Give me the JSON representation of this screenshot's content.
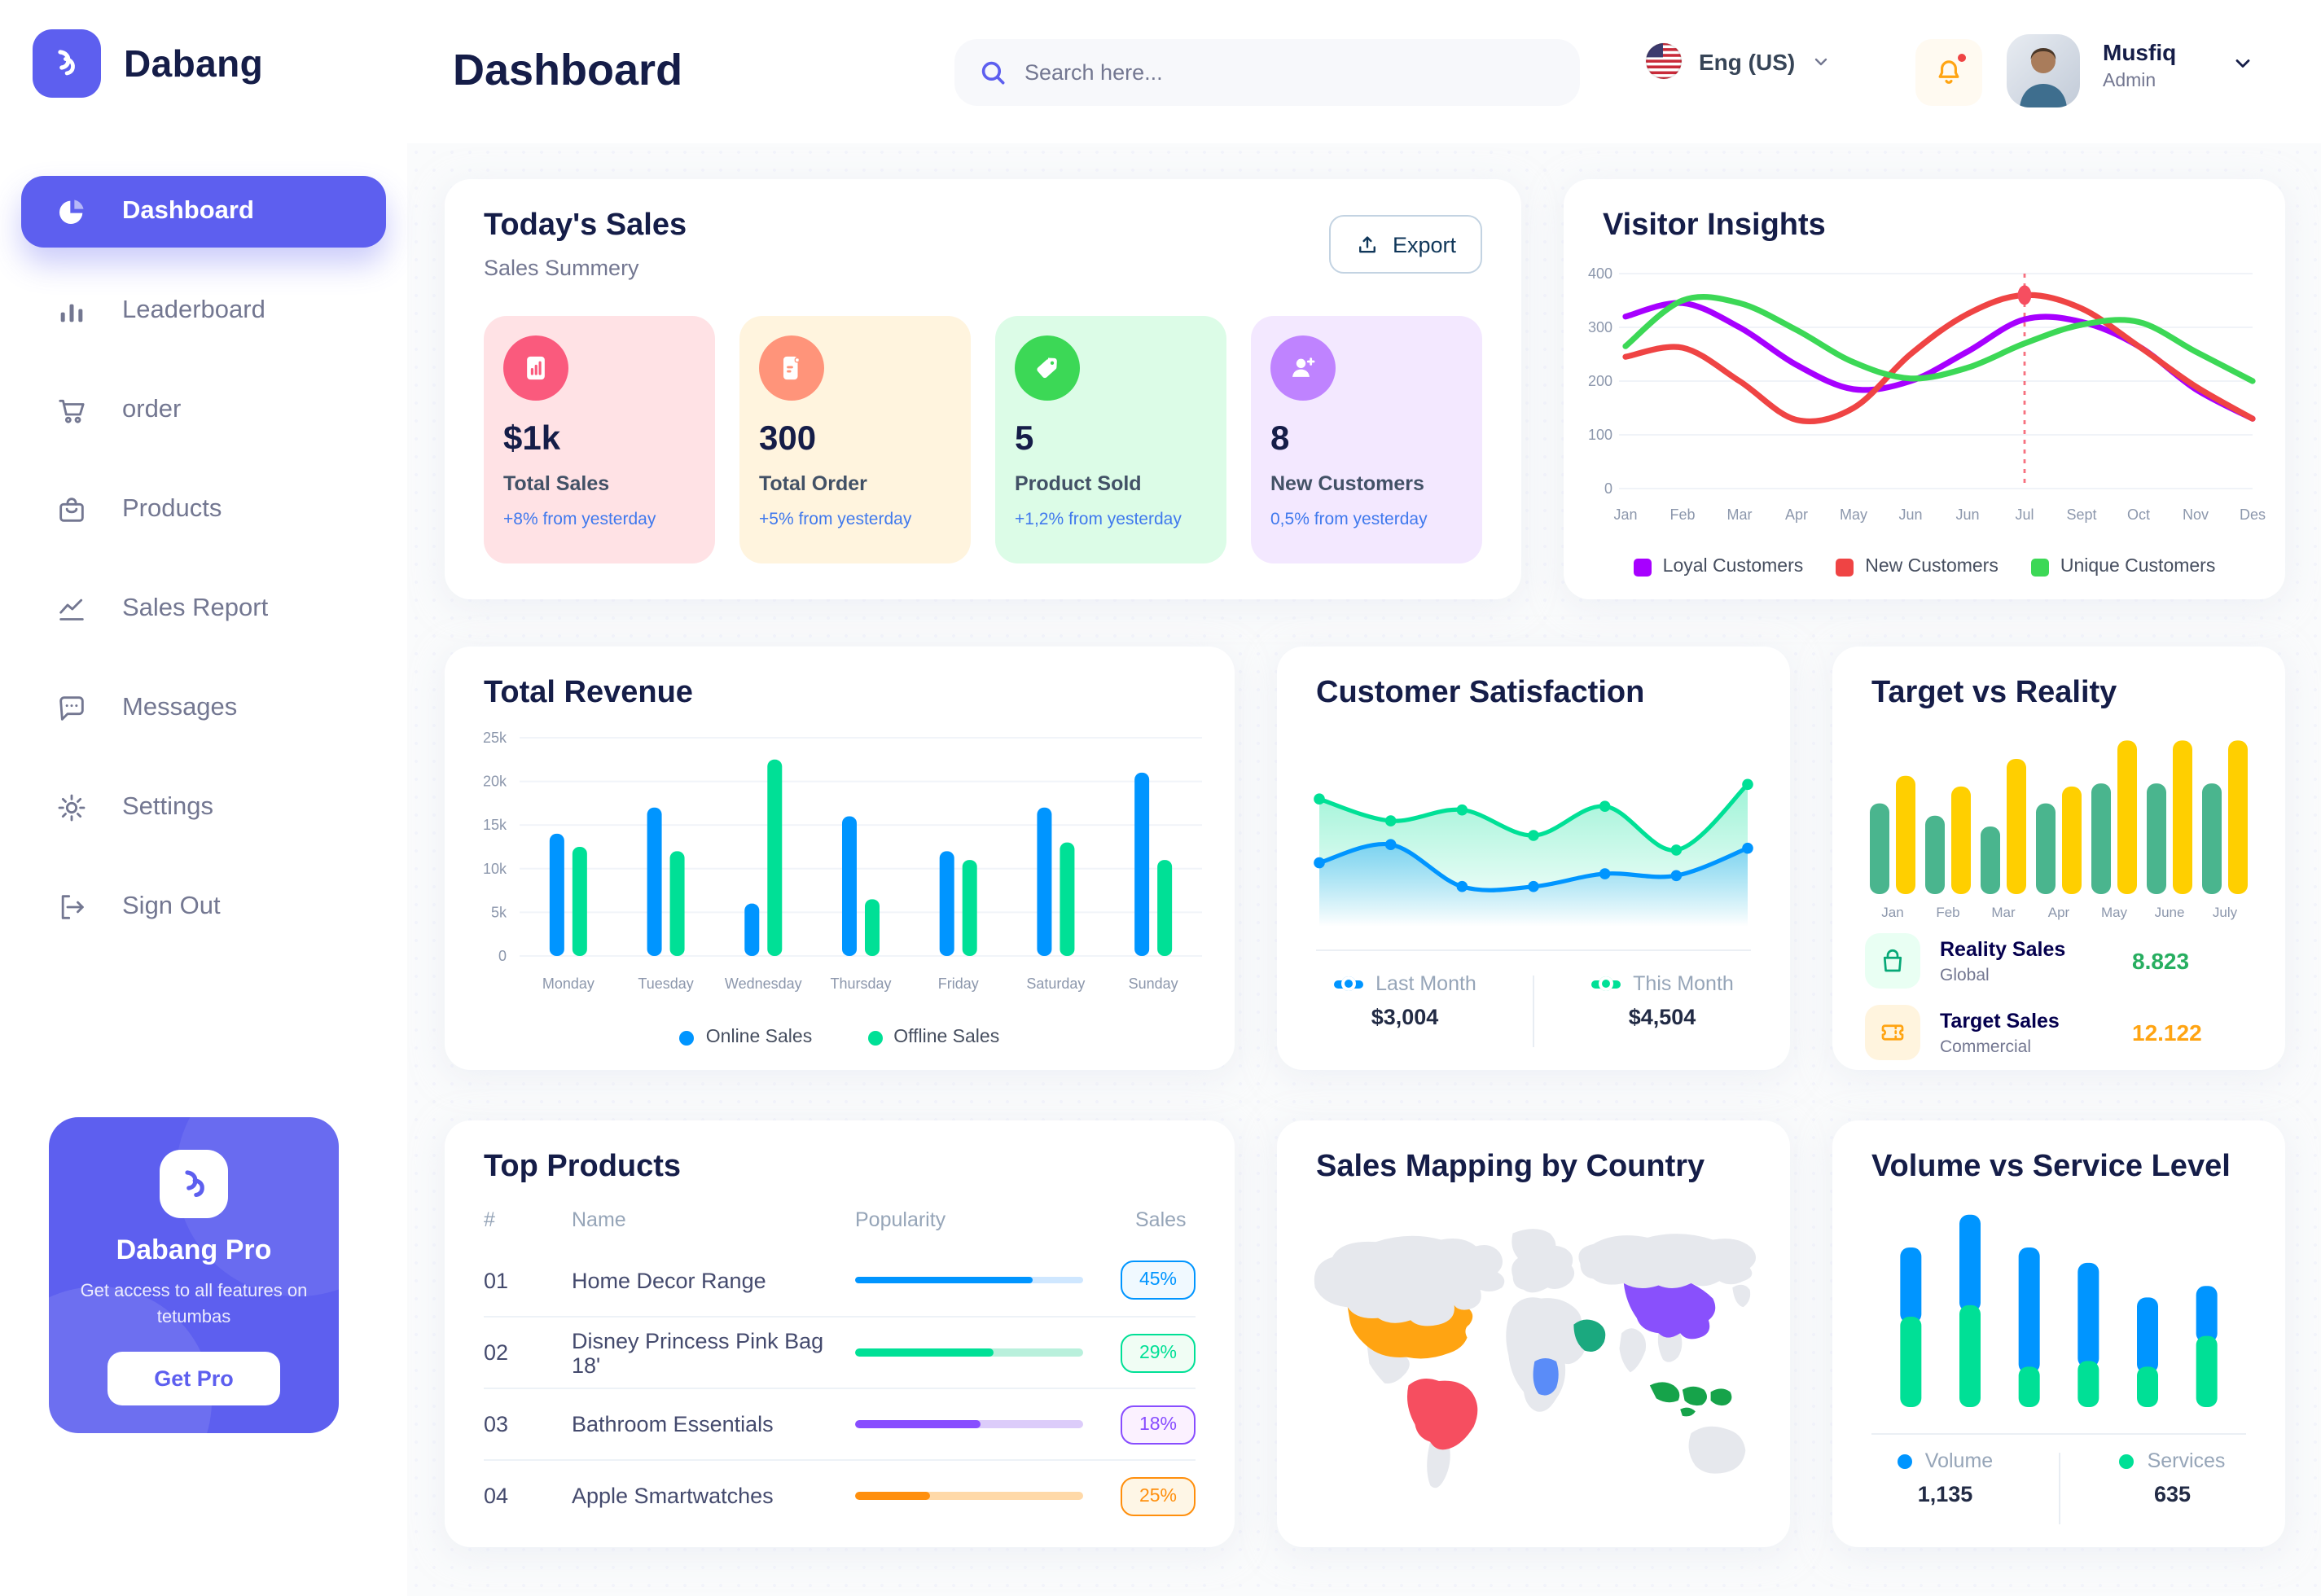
{
  "app": {
    "brand": "Dabang",
    "accent_color": "#5D5FEF"
  },
  "sidebar": {
    "items": [
      {
        "label": "Dashboard",
        "active": true
      },
      {
        "label": "Leaderboard",
        "active": false
      },
      {
        "label": "order",
        "active": false
      },
      {
        "label": "Products",
        "active": false
      },
      {
        "label": "Sales Report",
        "active": false
      },
      {
        "label": "Messages",
        "active": false
      },
      {
        "label": "Settings",
        "active": false
      },
      {
        "label": "Sign Out",
        "active": false
      }
    ],
    "promo": {
      "title": "Dabang Pro",
      "desc": "Get access to all features on tetumbas",
      "cta": "Get Pro"
    }
  },
  "header": {
    "title": "Dashboard",
    "search_placeholder": "Search here...",
    "language": "Eng (US)",
    "user": {
      "name": "Musfiq",
      "role": "Admin"
    }
  },
  "todays_sales": {
    "title": "Today's Sales",
    "subtitle": "Sales Summery",
    "export_label": "Export",
    "cards": [
      {
        "value": "$1k",
        "label": "Total Sales",
        "delta": "+8% from yesterday",
        "bg": "#FFE2E5",
        "icon_bg": "#FA5A7D",
        "icon": "bar-chart"
      },
      {
        "value": "300",
        "label": "Total Order",
        "delta": "+5% from yesterday",
        "bg": "#FFF4DE",
        "icon_bg": "#FF947A",
        "icon": "file-lines"
      },
      {
        "value": "5",
        "label": "Product Sold",
        "delta": "+1,2% from yesterday",
        "bg": "#DCFCE7",
        "icon_bg": "#3CD856",
        "icon": "price-tag"
      },
      {
        "value": "8",
        "label": "New Customers",
        "delta": "0,5% from yesterday",
        "bg": "#F3E8FF",
        "icon_bg": "#BF83FF",
        "icon": "user-plus"
      }
    ]
  },
  "visitor_insights": {
    "title": "Visitor Insights",
    "chart_data": {
      "type": "line",
      "x": [
        "Jan",
        "Feb",
        "Mar",
        "Apr",
        "May",
        "Jun",
        "Jun",
        "Jul",
        "Sept",
        "Oct",
        "Nov",
        "Des"
      ],
      "ylim": [
        0,
        400
      ],
      "yticks": [
        0,
        100,
        200,
        300,
        400
      ],
      "grid": true,
      "legend_position": "bottom",
      "series": [
        {
          "name": "Loyal Customers",
          "color": "#A700FF",
          "values": [
            320,
            345,
            300,
            230,
            185,
            200,
            255,
            315,
            310,
            265,
            185,
            130
          ]
        },
        {
          "name": "New Customers",
          "color": "#EF4444",
          "values": [
            245,
            262,
            200,
            128,
            150,
            250,
            325,
            360,
            335,
            265,
            190,
            130
          ]
        },
        {
          "name": "Unique Customers",
          "color": "#3CD856",
          "values": [
            265,
            350,
            345,
            295,
            235,
            205,
            225,
            270,
            305,
            310,
            255,
            200
          ]
        }
      ],
      "marker": {
        "series_index": 1,
        "index": 7
      },
      "vline_index": 7
    }
  },
  "total_revenue": {
    "title": "Total Revenue",
    "chart_data": {
      "type": "bar",
      "categories": [
        "Monday",
        "Tuesday",
        "Wednesday",
        "Thursday",
        "Friday",
        "Saturday",
        "Sunday"
      ],
      "ylim": [
        0,
        25000
      ],
      "yticks": [
        0,
        5000,
        10000,
        15000,
        20000,
        25000
      ],
      "ytick_labels": [
        "0",
        "5k",
        "10k",
        "15k",
        "20k",
        "25k"
      ],
      "grid": true,
      "legend_position": "bottom",
      "series": [
        {
          "name": "Online Sales",
          "color": "#0095FF",
          "values": [
            14000,
            17000,
            6000,
            16000,
            12000,
            17000,
            21000
          ]
        },
        {
          "name": "Offline Sales",
          "color": "#00E096",
          "values": [
            12500,
            12000,
            22500,
            6500,
            11000,
            13000,
            11000
          ]
        }
      ]
    }
  },
  "customer_satisfaction": {
    "title": "Customer Satisfaction",
    "chart_data": {
      "type": "area",
      "ylim": [
        0,
        100
      ],
      "series": [
        {
          "name": "Last Month",
          "color": "#0095FF",
          "total_label": "$3,004",
          "values": [
            35,
            45,
            22,
            22,
            29,
            28,
            43
          ]
        },
        {
          "name": "This Month",
          "color": "#00E096",
          "total_label": "$4,504",
          "values": [
            70,
            58,
            64,
            50,
            66,
            42,
            78
          ]
        }
      ]
    }
  },
  "target_reality": {
    "title": "Target vs Reality",
    "chart_data": {
      "type": "bar",
      "categories": [
        "Jan",
        "Feb",
        "Mar",
        "Apr",
        "May",
        "June",
        "July"
      ],
      "ylim": [
        0,
        10.6
      ],
      "series": [
        {
          "name": "Reality Sales",
          "color": "#4AB58E",
          "values": [
            5.9,
            5.1,
            4.4,
            5.9,
            7.2,
            7.2,
            7.2
          ]
        },
        {
          "name": "Target Sales",
          "color": "#FFCF00",
          "values": [
            7.7,
            7.0,
            8.8,
            7.0,
            10,
            10,
            10
          ]
        }
      ]
    },
    "legend": [
      {
        "name": "Reality Sales",
        "sub": "Global",
        "value": "8.823",
        "value_color": "#27AE60",
        "icon": "shopping-bag",
        "icon_bg": "#E9FFF3",
        "icon_color": "#07A877"
      },
      {
        "name": "Target Sales",
        "sub": "Commercial",
        "value": "12.122",
        "value_color": "#FFA412",
        "icon": "ticket",
        "icon_bg": "#FFF4DE",
        "icon_color": "#FFA412"
      }
    ]
  },
  "top_products": {
    "title": "Top Products",
    "headers": [
      "#",
      "Name",
      "Popularity",
      "Sales"
    ],
    "rows": [
      {
        "num": "01",
        "name": "Home Decor Range",
        "popularity": 78,
        "sales": "45%",
        "color": "#0095FF",
        "track": "#CFE7FF",
        "badge_bg": "#F0F9FF"
      },
      {
        "num": "02",
        "name": "Disney Princess Pink Bag 18'",
        "popularity": 61,
        "sales": "29%",
        "color": "#00E096",
        "track": "#B9F0DC",
        "badge_bg": "#F0FDF4"
      },
      {
        "num": "03",
        "name": "Bathroom Essentials",
        "popularity": 55,
        "sales": "18%",
        "color": "#884DFF",
        "track": "#DCCCFA",
        "badge_bg": "#FBF1FF"
      },
      {
        "num": "04",
        "name": "Apple Smartwatches",
        "popularity": 33,
        "sales": "25%",
        "color": "#FF8F0D",
        "track": "#FFD9A8",
        "badge_bg": "#FEF6E6"
      }
    ]
  },
  "sales_map": {
    "title": "Sales Mapping by Country",
    "base_color": "#E6E8ED",
    "regions": [
      {
        "id": "usa",
        "name": "United States",
        "color": "#FFA412"
      },
      {
        "id": "brazil",
        "name": "Brazil",
        "color": "#F64E60"
      },
      {
        "id": "china",
        "name": "China",
        "color": "#8950FC"
      },
      {
        "id": "saudi",
        "name": "Saudi Arabia",
        "color": "#1BA97F"
      },
      {
        "id": "congo",
        "name": "DR Congo",
        "color": "#5A8CF8"
      },
      {
        "id": "indonesia",
        "name": "Indonesia",
        "color": "#16A34A"
      }
    ]
  },
  "volume_service": {
    "title": "Volume vs Service Level",
    "chart_data": {
      "type": "bar",
      "stacked": true,
      "series": [
        {
          "name": "Volume",
          "color": "#0095FF",
          "total_label": "1,135",
          "values": [
            36,
            47,
            62,
            51,
            36,
            26
          ]
        },
        {
          "name": "Services",
          "color": "#00E096",
          "total_label": "635",
          "values": [
            47,
            53,
            21,
            24,
            21,
            37
          ]
        }
      ]
    }
  }
}
